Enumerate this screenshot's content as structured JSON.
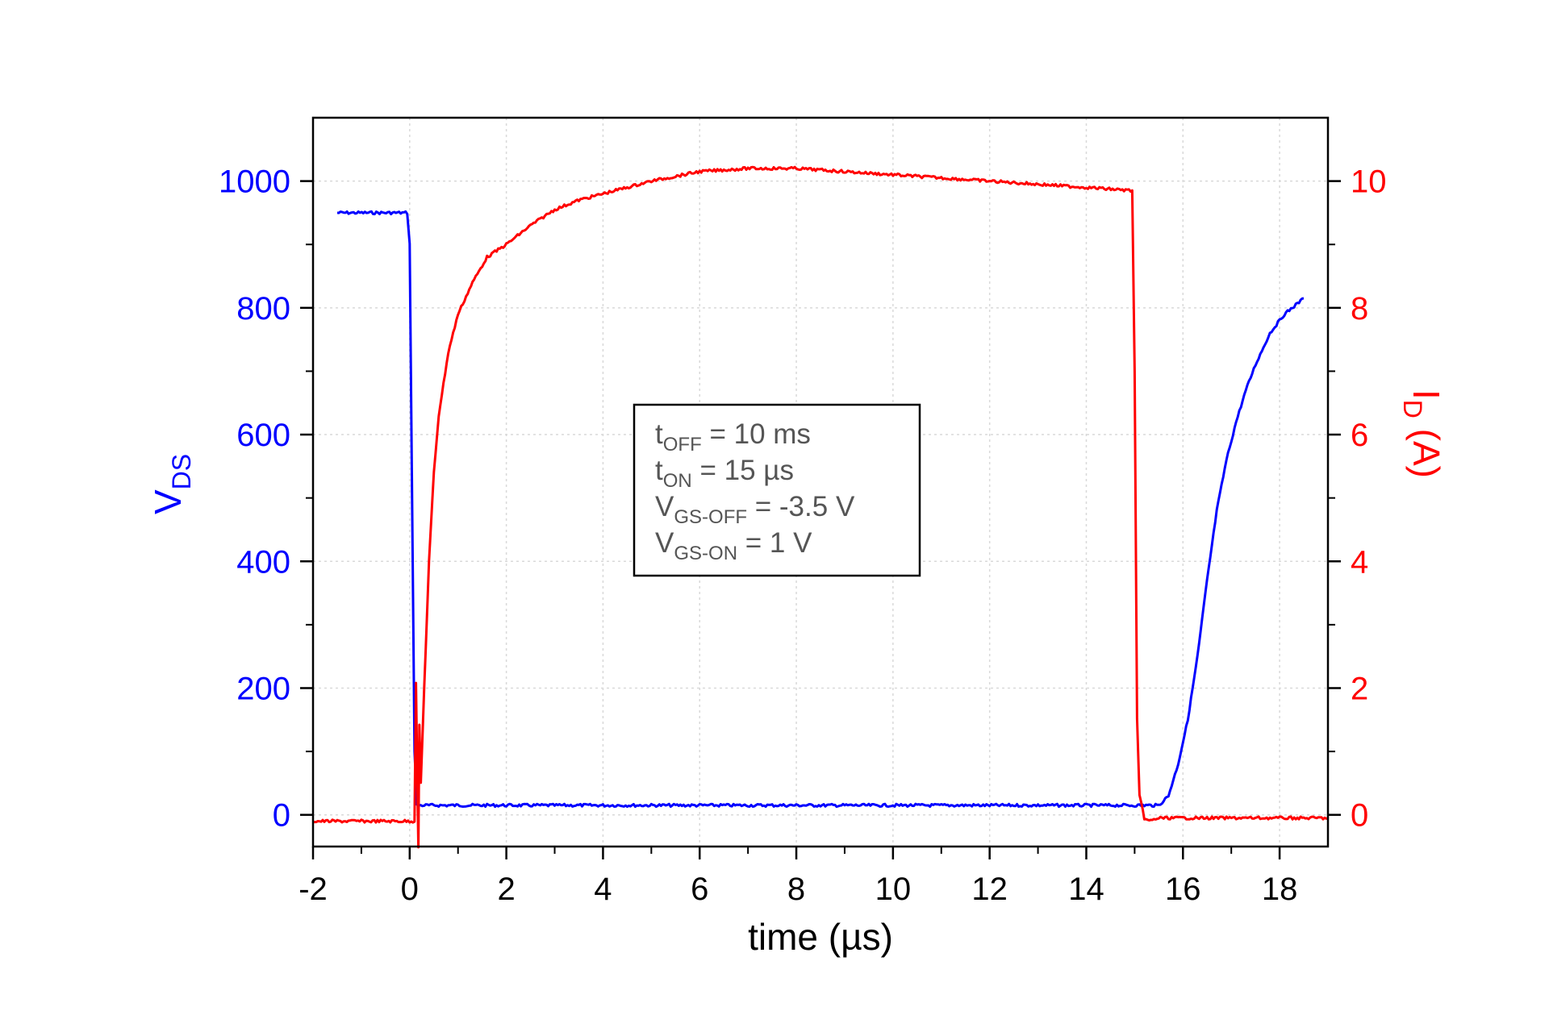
{
  "chart_data": {
    "type": "line",
    "xlabel": "time (µs)",
    "ylabel_left": {
      "main": "V",
      "sub": "DS"
    },
    "ylabel_right": {
      "main": "I",
      "sub": "D",
      "unit": " (A)"
    },
    "xlim": [
      -2,
      19
    ],
    "ylim_left": [
      -50,
      1100
    ],
    "ylim_right": [
      -0.5,
      11
    ],
    "xticks": [
      -2,
      0,
      2,
      4,
      6,
      8,
      10,
      12,
      14,
      16,
      18
    ],
    "yticks_left": [
      0,
      200,
      400,
      600,
      800,
      1000
    ],
    "yticks_right": [
      0,
      2,
      4,
      6,
      8,
      10
    ],
    "grid": true,
    "colors": {
      "vds": "#0000ff",
      "id": "#ff0000",
      "axis": "#000000",
      "grid": "#d9d9d9"
    },
    "annotation": [
      {
        "main": "t",
        "sub": "OFF",
        "rest": " = 10 ms"
      },
      {
        "main": "t",
        "sub": "ON",
        "rest": " = 15 µs"
      },
      {
        "main": "V",
        "sub": "GS-OFF",
        "rest": " = -3.5 V"
      },
      {
        "main": "V",
        "sub": "GS-ON",
        "rest": " = 1 V"
      }
    ],
    "series": [
      {
        "axis": "left",
        "color": "#0000ff",
        "x": [
          -1.5,
          -0.05,
          0.0,
          0.05,
          0.1,
          0.15,
          0.3,
          1,
          2,
          4,
          6,
          8,
          10,
          12,
          14,
          14.8,
          15.0,
          15.2,
          15.5,
          15.7,
          15.9,
          16.1,
          16.3,
          16.5,
          16.7,
          16.9,
          17.1,
          17.3,
          17.5,
          17.8,
          18.1,
          18.5
        ],
        "y": [
          950,
          950,
          900,
          500,
          100,
          15,
          15,
          15,
          15,
          15,
          15,
          15,
          15,
          15,
          15,
          15,
          15,
          15,
          15,
          30,
          80,
          150,
          250,
          370,
          480,
          560,
          620,
          670,
          710,
          760,
          790,
          815
        ]
      },
      {
        "axis": "right",
        "color": "#ff0000",
        "x": [
          -2,
          -1,
          0,
          0.1,
          0.13,
          0.16,
          0.18,
          0.2,
          0.23,
          0.3,
          0.4,
          0.5,
          0.6,
          0.8,
          1.0,
          1.3,
          1.6,
          2.0,
          2.5,
          3.0,
          3.5,
          4.0,
          5.0,
          6.0,
          7.0,
          8.0,
          9.0,
          10.0,
          11.0,
          12.0,
          13.0,
          14.0,
          14.95,
          15.0,
          15.05,
          15.1,
          15.2,
          15.3,
          15.5,
          16.0,
          17.0,
          18.0,
          19.0
        ],
        "y": [
          -0.1,
          -0.1,
          -0.1,
          -0.1,
          2.1,
          0.4,
          -0.5,
          1.4,
          0.5,
          2.0,
          4.0,
          5.4,
          6.3,
          7.3,
          7.9,
          8.4,
          8.8,
          9.0,
          9.3,
          9.55,
          9.7,
          9.8,
          10.0,
          10.15,
          10.2,
          10.2,
          10.15,
          10.1,
          10.05,
          10.0,
          9.95,
          9.9,
          9.85,
          7.0,
          1.5,
          0.3,
          -0.05,
          -0.1,
          -0.05,
          -0.05,
          -0.05,
          -0.05,
          -0.05
        ]
      }
    ]
  }
}
